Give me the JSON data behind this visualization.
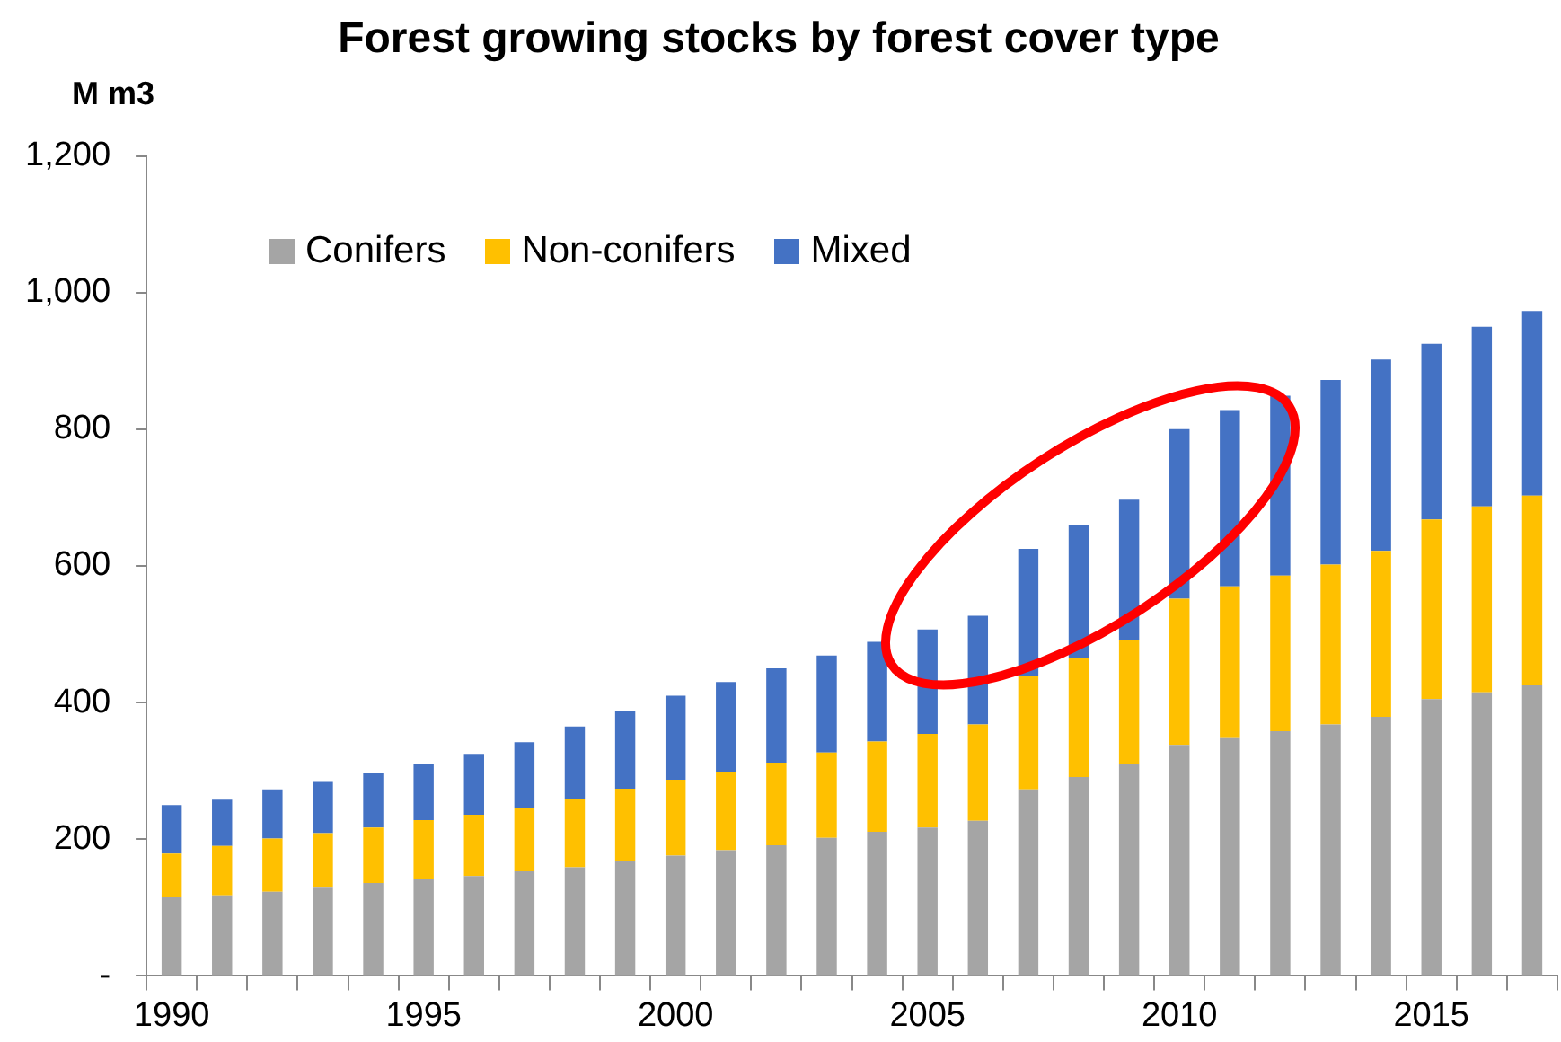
{
  "chart_data": {
    "type": "bar",
    "title": "Forest growing stocks by forest cover type",
    "ylabel": "M m3",
    "stacked": true,
    "categories": [
      "1990",
      null,
      null,
      null,
      null,
      "1995",
      null,
      null,
      null,
      null,
      "2000",
      null,
      null,
      null,
      null,
      "2005",
      null,
      null,
      null,
      null,
      "2010",
      null,
      null,
      null,
      null,
      "2015",
      null,
      null
    ],
    "series": [
      {
        "name": "Conifers",
        "color": "#a5a5a5",
        "values": [
          115,
          118,
          123,
          129,
          136,
          142,
          146,
          153,
          159,
          168,
          176,
          184,
          191,
          202,
          211,
          217,
          227,
          273,
          291,
          310,
          338,
          348,
          358,
          368,
          379,
          405,
          415,
          425
        ]
      },
      {
        "name": "Non-conifers",
        "color": "#ffc000",
        "values": [
          64,
          72,
          78,
          80,
          81,
          86,
          90,
          93,
          100,
          106,
          111,
          115,
          121,
          125,
          132,
          137,
          141,
          166,
          174,
          181,
          214,
          222,
          228,
          234,
          243,
          263,
          272,
          278
        ]
      },
      {
        "name": "Mixed",
        "color": "#4472c4",
        "values": [
          71,
          68,
          72,
          76,
          80,
          82,
          89,
          96,
          106,
          114,
          123,
          131,
          138,
          142,
          146,
          153,
          159,
          186,
          195,
          206,
          248,
          258,
          263,
          270,
          280,
          257,
          263,
          270
        ]
      }
    ],
    "ylim": [
      0,
      1200
    ],
    "yticks": [
      {
        "value": 0,
        "label": "-"
      },
      200,
      400,
      600,
      800,
      {
        "value": 1000,
        "label": "1,000"
      },
      {
        "value": 1200,
        "label": "1,200"
      }
    ],
    "grid": false,
    "legend": "top left"
  }
}
